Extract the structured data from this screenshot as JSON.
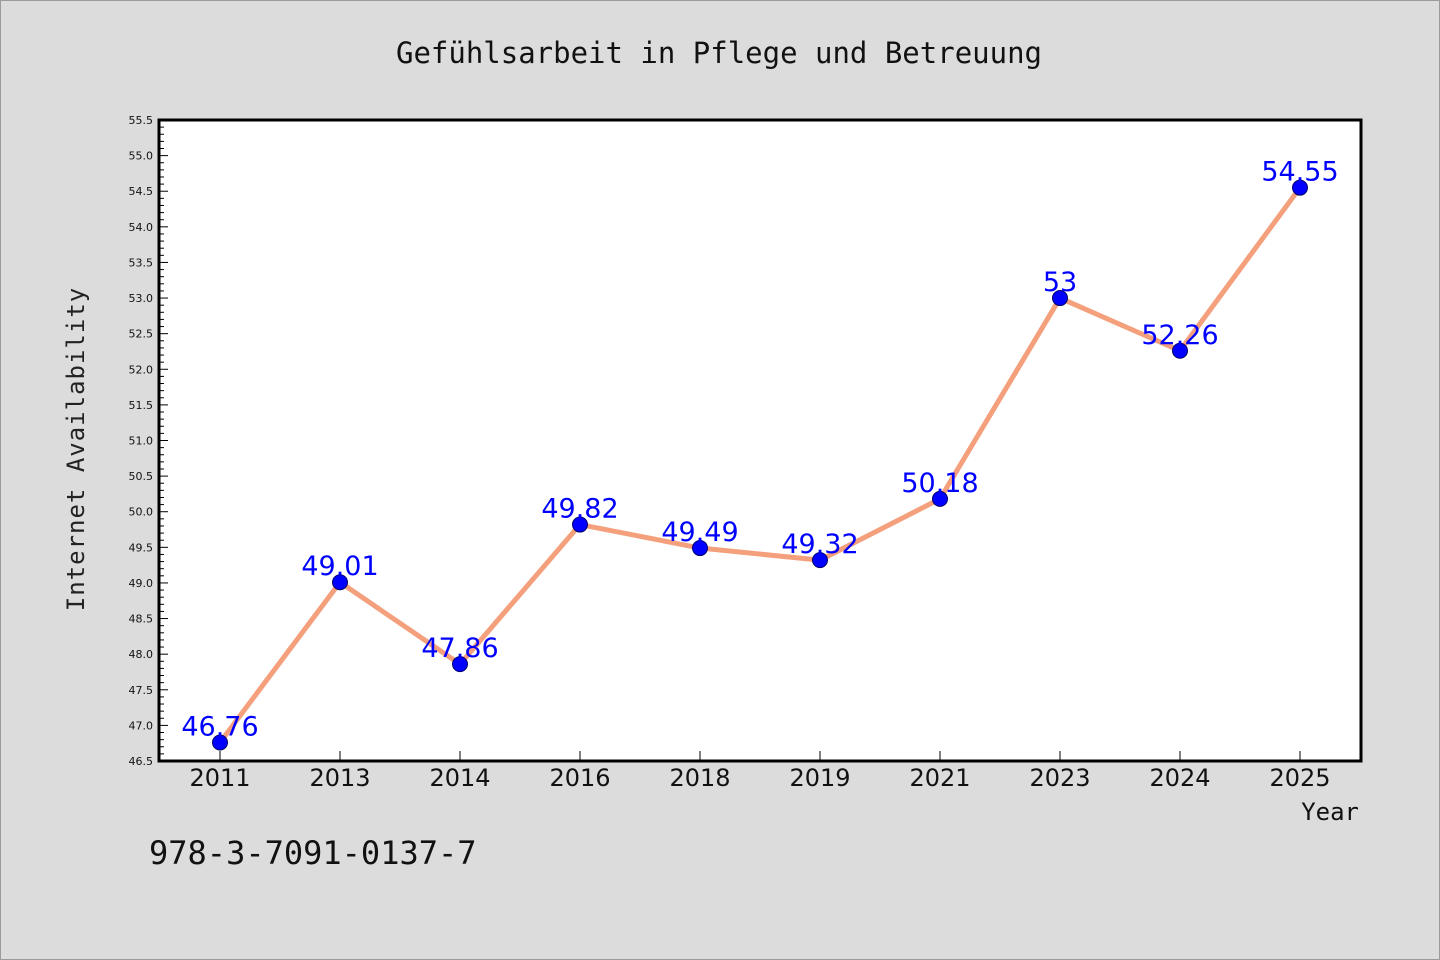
{
  "chart_data": {
    "type": "line",
    "title": "Gefühlsarbeit in Pflege und Betreuung",
    "xlabel": "Year",
    "ylabel": "Internet Availability",
    "categories": [
      "2011",
      "2013",
      "2014",
      "2016",
      "2018",
      "2019",
      "2021",
      "2023",
      "2024",
      "2025"
    ],
    "values": [
      46.76,
      49.01,
      47.86,
      49.82,
      49.49,
      49.32,
      50.18,
      53,
      52.26,
      54.55
    ],
    "data_labels": [
      "46.76",
      "49.01",
      "47.86",
      "49.82",
      "49.49",
      "49.32",
      "50.18",
      "53",
      "52.26",
      "54.55"
    ],
    "ylim": [
      46.5,
      55.5
    ],
    "yticks": [
      "46.5",
      "47.0",
      "47.5",
      "48.0",
      "48.5",
      "49.0",
      "49.5",
      "50.0",
      "50.5",
      "51.0",
      "51.5",
      "52.0",
      "52.5",
      "53.0",
      "53.5",
      "54.0",
      "54.5",
      "55.0",
      "55.5"
    ],
    "grid": false,
    "legend": "none",
    "colors": {
      "line": "#f4a07c",
      "marker": "#0000ff",
      "label": "#0000ff",
      "background": "#dcdcdc",
      "plot_area": "#ffffff"
    }
  },
  "footer": {
    "isbn": "978-3-7091-0137-7"
  }
}
